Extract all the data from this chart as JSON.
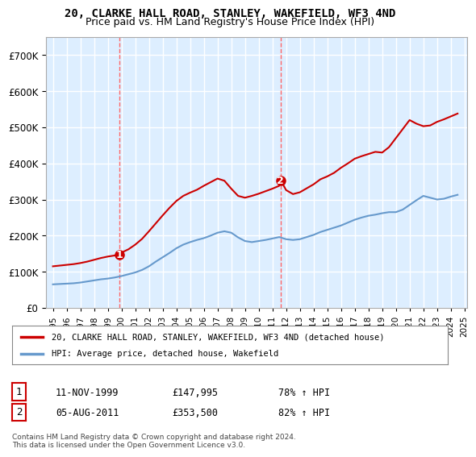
{
  "title": "20, CLARKE HALL ROAD, STANLEY, WAKEFIELD, WF3 4ND",
  "subtitle": "Price paid vs. HM Land Registry's House Price Index (HPI)",
  "legend_line1": "20, CLARKE HALL ROAD, STANLEY, WAKEFIELD, WF3 4ND (detached house)",
  "legend_line2": "HPI: Average price, detached house, Wakefield",
  "transaction1_label": "1",
  "transaction1_date": "11-NOV-1999",
  "transaction1_price": "£147,995",
  "transaction1_hpi": "78% ↑ HPI",
  "transaction1_year": 1999.87,
  "transaction1_value": 147995,
  "transaction2_label": "2",
  "transaction2_date": "05-AUG-2011",
  "transaction2_price": "£353,500",
  "transaction2_hpi": "82% ↑ HPI",
  "transaction2_year": 2011.6,
  "transaction2_value": 353500,
  "footnote": "Contains HM Land Registry data © Crown copyright and database right 2024.\nThis data is licensed under the Open Government Licence v3.0.",
  "background_color": "#ffffff",
  "plot_bg_color": "#ddeeff",
  "grid_color": "#ffffff",
  "red_line_color": "#cc0000",
  "blue_line_color": "#6699cc",
  "marker_color_red": "#cc0000",
  "marker_color_blue": "#6699cc",
  "vline_color": "#ff6666",
  "ylim_min": 0,
  "ylim_max": 750000,
  "hpi_years": [
    1995,
    1995.5,
    1996,
    1996.5,
    1997,
    1997.5,
    1998,
    1998.5,
    1999,
    1999.5,
    2000,
    2000.5,
    2001,
    2001.5,
    2002,
    2002.5,
    2003,
    2003.5,
    2004,
    2004.5,
    2005,
    2005.5,
    2006,
    2006.5,
    2007,
    2007.5,
    2008,
    2008.5,
    2009,
    2009.5,
    2010,
    2010.5,
    2011,
    2011.5,
    2012,
    2012.5,
    2013,
    2013.5,
    2014,
    2014.5,
    2015,
    2015.5,
    2016,
    2016.5,
    2017,
    2017.5,
    2018,
    2018.5,
    2019,
    2019.5,
    2020,
    2020.5,
    2021,
    2021.5,
    2022,
    2022.5,
    2023,
    2023.5,
    2024,
    2024.5
  ],
  "hpi_values": [
    65000,
    66000,
    67000,
    68000,
    70000,
    73000,
    76000,
    79000,
    81000,
    84000,
    88000,
    93000,
    98000,
    105000,
    115000,
    128000,
    140000,
    152000,
    165000,
    175000,
    182000,
    188000,
    193000,
    200000,
    208000,
    212000,
    208000,
    195000,
    185000,
    182000,
    185000,
    188000,
    192000,
    196000,
    190000,
    188000,
    190000,
    196000,
    202000,
    210000,
    216000,
    222000,
    228000,
    236000,
    244000,
    250000,
    255000,
    258000,
    262000,
    265000,
    265000,
    272000,
    285000,
    298000,
    310000,
    305000,
    300000,
    302000,
    308000,
    313000
  ],
  "red_years": [
    1995,
    1995.5,
    1996,
    1996.5,
    1997,
    1997.5,
    1998,
    1998.5,
    1999,
    1999.5,
    1999.87,
    2000,
    2000.5,
    2001,
    2001.5,
    2002,
    2002.5,
    2003,
    2003.5,
    2004,
    2004.5,
    2005,
    2005.5,
    2006,
    2006.5,
    2007,
    2007.5,
    2008,
    2008.5,
    2009,
    2009.5,
    2010,
    2010.5,
    2011,
    2011.5,
    2011.6,
    2012,
    2012.5,
    2013,
    2013.5,
    2014,
    2014.5,
    2015,
    2015.5,
    2016,
    2016.5,
    2017,
    2017.5,
    2018,
    2018.5,
    2019,
    2019.5,
    2020,
    2020.5,
    2021,
    2021.5,
    2022,
    2022.5,
    2023,
    2023.5,
    2024,
    2024.5
  ],
  "red_values": [
    115000,
    117000,
    119000,
    121000,
    124000,
    128000,
    133000,
    138000,
    142000,
    145000,
    147995,
    153000,
    162000,
    175000,
    191000,
    212000,
    234000,
    256000,
    277000,
    296000,
    310000,
    319000,
    327000,
    338000,
    348000,
    358000,
    352000,
    330000,
    310000,
    305000,
    310000,
    316000,
    323000,
    330000,
    338000,
    353500,
    326000,
    315000,
    320000,
    331000,
    342000,
    356000,
    364000,
    374000,
    388000,
    400000,
    413000,
    420000,
    426000,
    432000,
    430000,
    445000,
    470000,
    495000,
    520000,
    510000,
    503000,
    505000,
    515000,
    522000,
    530000,
    538000
  ]
}
